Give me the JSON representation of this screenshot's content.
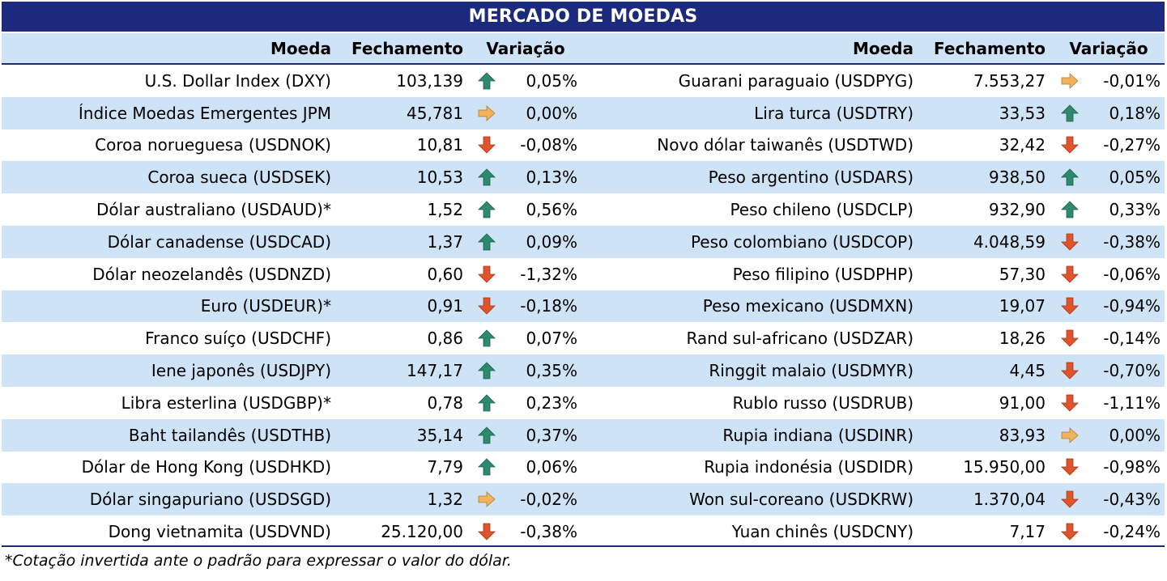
{
  "title": "MERCADO DE MOEDAS",
  "columns": {
    "currency": "Moeda",
    "close": "Fechamento",
    "change": "Variação"
  },
  "colors": {
    "header_bg": "#1c2a7d",
    "band": "#cfe3f7",
    "up": "#2e8a6e",
    "down": "#e0532b",
    "flat": "#f0b25a"
  },
  "left_rows": [
    {
      "name": "U.S. Dollar Index (DXY)",
      "close": "103,139",
      "dir": "up",
      "change": "0,05%"
    },
    {
      "name": "Índice Moedas Emergentes JPM",
      "close": "45,781",
      "dir": "flat",
      "change": "0,00%"
    },
    {
      "name": "Coroa norueguesa (USDNOK)",
      "close": "10,81",
      "dir": "down",
      "change": "-0,08%"
    },
    {
      "name": "Coroa sueca (USDSEK)",
      "close": "10,53",
      "dir": "up",
      "change": "0,13%"
    },
    {
      "name": "Dólar australiano (USDAUD)*",
      "close": "1,52",
      "dir": "up",
      "change": "0,56%"
    },
    {
      "name": "Dólar canadense (USDCAD)",
      "close": "1,37",
      "dir": "up",
      "change": "0,09%"
    },
    {
      "name": "Dólar neozelandês (USDNZD)",
      "close": "0,60",
      "dir": "down",
      "change": "-1,32%"
    },
    {
      "name": "Euro (USDEUR)*",
      "close": "0,91",
      "dir": "down",
      "change": "-0,18%"
    },
    {
      "name": "Franco suíço (USDCHF)",
      "close": "0,86",
      "dir": "up",
      "change": "0,07%"
    },
    {
      "name": "Iene japonês (USDJPY)",
      "close": "147,17",
      "dir": "up",
      "change": "0,35%"
    },
    {
      "name": "Libra esterlina (USDGBP)*",
      "close": "0,78",
      "dir": "up",
      "change": "0,23%"
    },
    {
      "name": "Baht tailandês (USDTHB)",
      "close": "35,14",
      "dir": "up",
      "change": "0,37%"
    },
    {
      "name": "Dólar de Hong Kong (USDHKD)",
      "close": "7,79",
      "dir": "up",
      "change": "0,06%"
    },
    {
      "name": "Dólar singapuriano (USDSGD)",
      "close": "1,32",
      "dir": "flat",
      "change": "-0,02%"
    },
    {
      "name": "Dong vietnamita (USDVND)",
      "close": "25.120,00",
      "dir": "down",
      "change": "-0,38%"
    }
  ],
  "right_rows": [
    {
      "name": "Guarani paraguaio (USDPYG)",
      "close": "7.553,27",
      "dir": "flat",
      "change": "-0,01%"
    },
    {
      "name": "Lira turca (USDTRY)",
      "close": "33,53",
      "dir": "up",
      "change": "0,18%"
    },
    {
      "name": "Novo dólar taiwanês (USDTWD)",
      "close": "32,42",
      "dir": "down",
      "change": "-0,27%"
    },
    {
      "name": "Peso argentino (USDARS)",
      "close": "938,50",
      "dir": "up",
      "change": "0,05%"
    },
    {
      "name": "Peso chileno (USDCLP)",
      "close": "932,90",
      "dir": "up",
      "change": "0,33%"
    },
    {
      "name": "Peso colombiano (USDCOP)",
      "close": "4.048,59",
      "dir": "down",
      "change": "-0,38%"
    },
    {
      "name": "Peso filipino (USDPHP)",
      "close": "57,30",
      "dir": "down",
      "change": "-0,06%"
    },
    {
      "name": "Peso mexicano (USDMXN)",
      "close": "19,07",
      "dir": "down",
      "change": "-0,94%"
    },
    {
      "name": "Rand sul-africano (USDZAR)",
      "close": "18,26",
      "dir": "down",
      "change": "-0,14%"
    },
    {
      "name": "Ringgit malaio (USDMYR)",
      "close": "4,45",
      "dir": "down",
      "change": "-0,70%"
    },
    {
      "name": "Rublo russo (USDRUB)",
      "close": "91,00",
      "dir": "down",
      "change": "-1,11%"
    },
    {
      "name": "Rupia indiana (USDINR)",
      "close": "83,93",
      "dir": "flat",
      "change": "0,00%"
    },
    {
      "name": "Rupia indonésia (USDIDR)",
      "close": "15.950,00",
      "dir": "down",
      "change": "-0,98%"
    },
    {
      "name": "Won sul-coreano (USDKRW)",
      "close": "1.370,04",
      "dir": "down",
      "change": "-0,43%"
    },
    {
      "name": "Yuan chinês (USDCNY)",
      "close": "7,17",
      "dir": "down",
      "change": "-0,24%"
    }
  ],
  "footnote": "*Cotação invertida ante o padrão para expressar o valor do dólar."
}
